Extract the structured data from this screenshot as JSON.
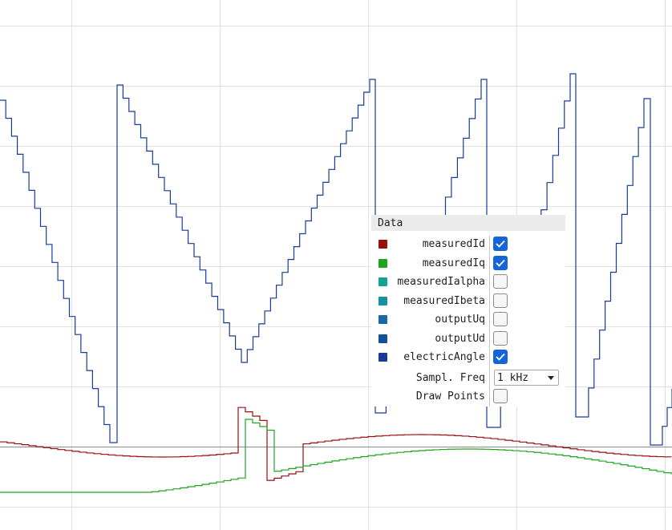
{
  "panel": {
    "title": "Data",
    "rows": [
      {
        "label": "measuredId",
        "color": "#9b0e0e",
        "checked": true
      },
      {
        "label": "measuredIq",
        "color": "#1ea51e",
        "checked": true
      },
      {
        "label": "measuredIalpha",
        "color": "#14a393",
        "checked": false
      },
      {
        "label": "measuredIbeta",
        "color": "#13929f",
        "checked": false
      },
      {
        "label": "outputUq",
        "color": "#1769a8",
        "checked": false
      },
      {
        "label": "outputUd",
        "color": "#124fa0",
        "checked": false
      },
      {
        "label": "electricAngle",
        "color": "#163c99",
        "checked": true
      }
    ],
    "sample_freq": {
      "label": "Sampl. Freq",
      "value": "1 kHz"
    },
    "draw_points": {
      "label": "Draw Points",
      "checked": false
    }
  },
  "chart_data": {
    "type": "line",
    "title": "",
    "xlabel": "",
    "ylabel": "",
    "grid": true,
    "legend": "checkbox panel, right-center",
    "x": [
      0,
      840
    ],
    "series": [
      {
        "name": "electricAngle",
        "color": "#163c99",
        "style": "step sawtooth, seven ramps"
      },
      {
        "name": "measuredId",
        "color": "#9b0e0e",
        "style": "step, small oscillation near baseline"
      },
      {
        "name": "measuredIq",
        "color": "#1ea51e",
        "style": "step, small oscillation below baseline"
      }
    ]
  }
}
